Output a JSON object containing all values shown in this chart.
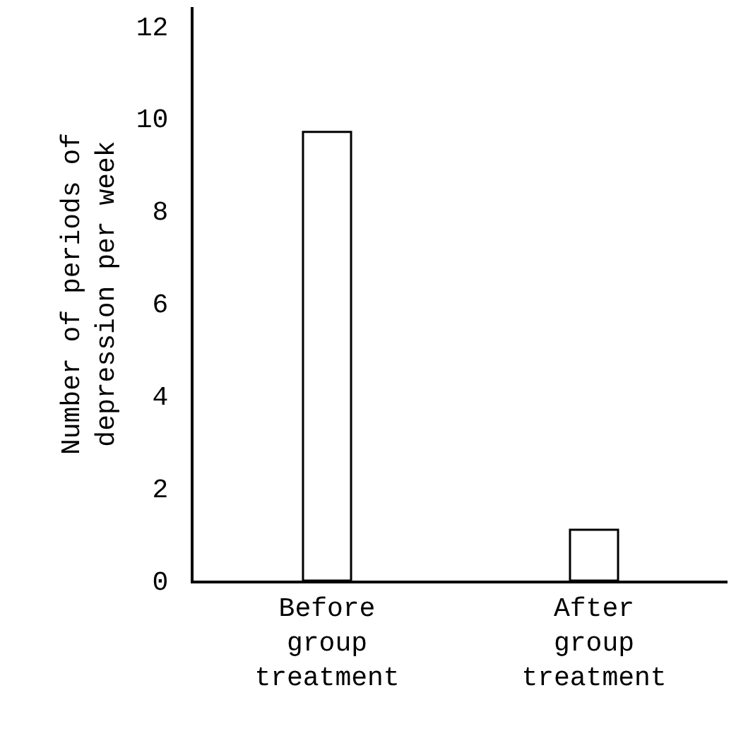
{
  "chart_data": {
    "type": "bar",
    "ylabel": "Number of periods of\ndepression per week",
    "categories": [
      "Before\ngroup\ntreatment",
      "After\ngroup\ntreatment"
    ],
    "values": [
      9.7,
      1.1
    ],
    "color": "#ffffff",
    "ylim": [
      0,
      12.4
    ],
    "yticks": [
      0,
      2,
      4,
      6,
      8,
      10,
      12
    ],
    "grid": false
  }
}
